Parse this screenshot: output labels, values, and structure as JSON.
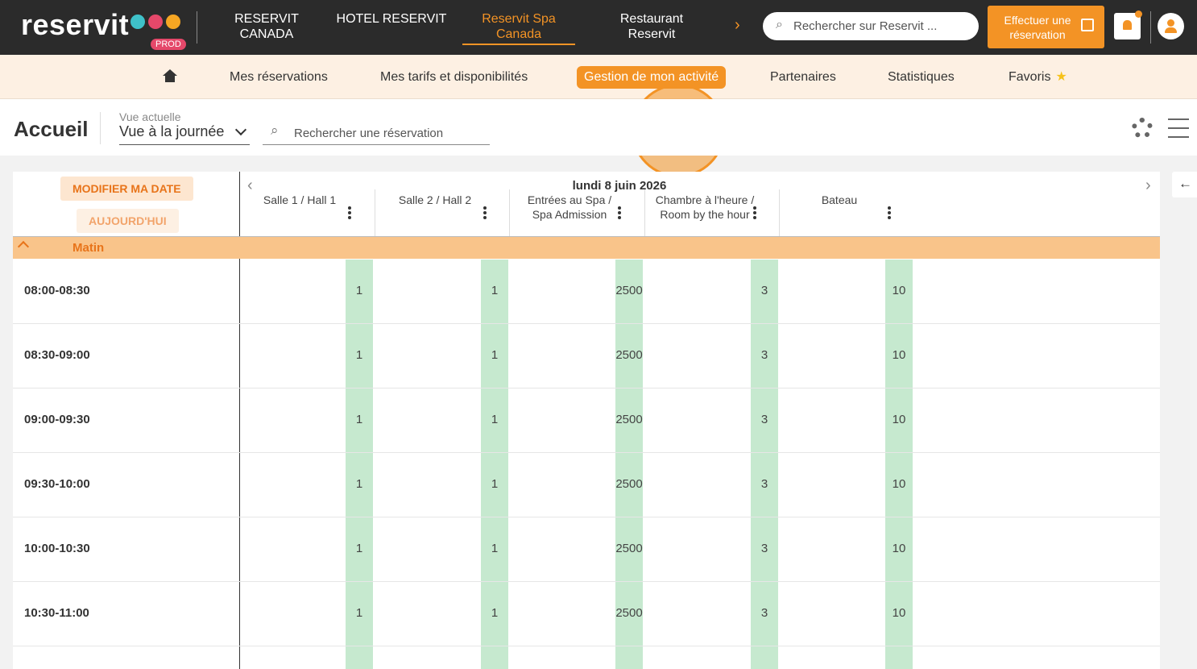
{
  "header": {
    "logo": "reservit",
    "badge": "PROD",
    "tabs": [
      "RESERVIT CANADA",
      "HOTEL RESERVIT",
      "Reservit Spa Canada",
      "Restaurant Reservit"
    ],
    "active_tab": 2,
    "search_placeholder": "Rechercher sur Reservit ...",
    "cta": "Effectuer une réservation"
  },
  "nav": {
    "items": [
      "Mes réservations",
      "Mes tarifs et disponibilités",
      "Gestion de mon activité",
      "Partenaires",
      "Statistiques",
      "Favoris"
    ],
    "active": 2
  },
  "toolbar": {
    "title": "Accueil",
    "view_label": "Vue actuelle",
    "view": "Vue à la journée",
    "search_placeholder": "Rechercher une réservation"
  },
  "planning": {
    "buttons": [
      "MODIFIER MA DATE",
      "AUJOURD'HUI"
    ],
    "date": "lundi 8 juin 2026",
    "columns": [
      "Salle 1 / Hall 1",
      "Salle 2 / Hall 2",
      "Entrées au Spa / Spa Admission",
      "Chambre à l'heure / Room by the hour",
      "Bateau"
    ],
    "section": "Matin",
    "rows": [
      {
        "time": "08:00-08:30",
        "values": [
          1,
          1,
          2500,
          3,
          10
        ]
      },
      {
        "time": "08:30-09:00",
        "values": [
          1,
          1,
          2500,
          3,
          10
        ]
      },
      {
        "time": "09:00-09:30",
        "values": [
          1,
          1,
          2500,
          3,
          10
        ]
      },
      {
        "time": "09:30-10:00",
        "values": [
          1,
          1,
          2500,
          3,
          10
        ]
      },
      {
        "time": "10:00-10:30",
        "values": [
          1,
          1,
          2500,
          3,
          10
        ]
      },
      {
        "time": "10:30-11:00",
        "values": [
          1,
          1,
          2500,
          3,
          10
        ]
      }
    ]
  }
}
